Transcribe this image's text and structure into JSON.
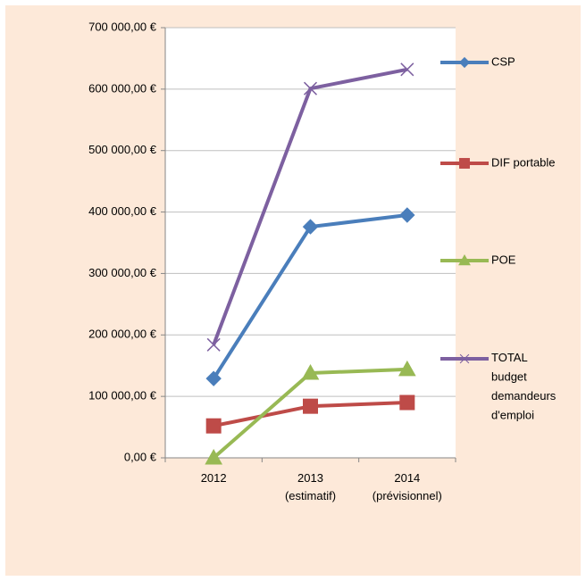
{
  "chart_data": {
    "type": "line",
    "categories": [
      "2012",
      "2013\n(estimatif)",
      "2014\n(prévisionnel)"
    ],
    "series": [
      {
        "name": "CSP",
        "color": "#4a7ebb",
        "marker": "diamond",
        "values": [
          129000,
          376000,
          395000
        ]
      },
      {
        "name": "DIF portable",
        "color": "#be4b48",
        "marker": "square",
        "values": [
          52000,
          84000,
          90000
        ]
      },
      {
        "name": "POE",
        "color": "#98b954",
        "marker": "triangle",
        "values": [
          0,
          138000,
          144000
        ]
      },
      {
        "name": "TOTAL budget demandeurs d'emploi",
        "color": "#7d60a0",
        "marker": "x",
        "values": [
          184000,
          601000,
          632000
        ]
      }
    ],
    "ylim": [
      0,
      700000
    ],
    "yticks": [
      {
        "value": 0,
        "label": "0,00 €"
      },
      {
        "value": 100000,
        "label": "100 000,00 €"
      },
      {
        "value": 200000,
        "label": "200 000,00 €"
      },
      {
        "value": 300000,
        "label": "300 000,00 €"
      },
      {
        "value": 400000,
        "label": "400 000,00 €"
      },
      {
        "value": 500000,
        "label": "500 000,00 €"
      },
      {
        "value": 600000,
        "label": "600 000,00 €"
      },
      {
        "value": 700000,
        "label": "700 000,00 €"
      }
    ],
    "grid": true,
    "legend": "right"
  }
}
